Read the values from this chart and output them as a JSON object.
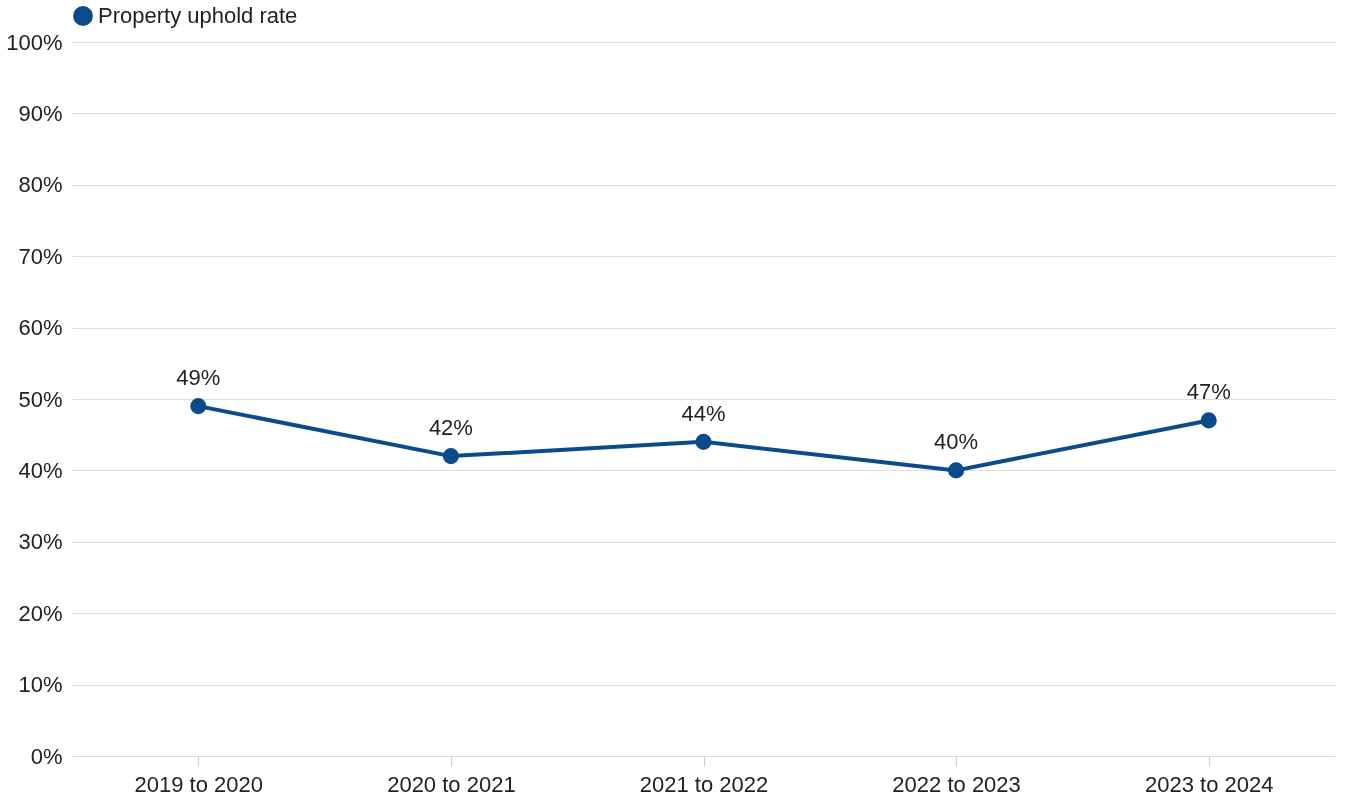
{
  "chart_data": {
    "type": "line",
    "categories": [
      "2019 to 2020",
      "2020 to 2021",
      "2021 to 2022",
      "2022 to 2023",
      "2023 to 2024"
    ],
    "series": [
      {
        "name": "Property uphold rate",
        "color": "#0b4a8b",
        "values": [
          49,
          42,
          44,
          40,
          47
        ],
        "value_labels": [
          "49%",
          "42%",
          "44%",
          "40%",
          "47%"
        ]
      }
    ],
    "ylim": [
      0,
      100
    ],
    "yticks": [
      {
        "value": 0,
        "label": "0%"
      },
      {
        "value": 10,
        "label": "10%"
      },
      {
        "value": 20,
        "label": "20%"
      },
      {
        "value": 30,
        "label": "30%"
      },
      {
        "value": 40,
        "label": "40%"
      },
      {
        "value": 50,
        "label": "50%"
      },
      {
        "value": 60,
        "label": "60%"
      },
      {
        "value": 70,
        "label": "70%"
      },
      {
        "value": 80,
        "label": "80%"
      },
      {
        "value": 90,
        "label": "90%"
      },
      {
        "value": 100,
        "label": "100%"
      }
    ],
    "grid": "y",
    "legend": "top left",
    "marker": "circle",
    "line_style": "solid"
  }
}
